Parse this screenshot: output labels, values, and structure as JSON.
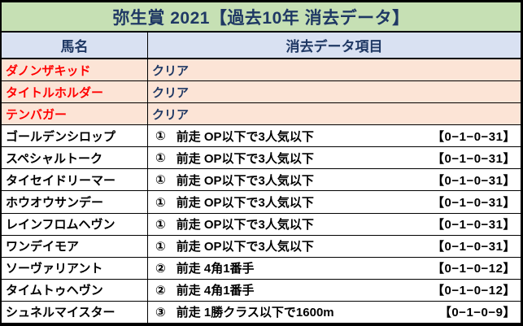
{
  "title": "弥生賞 2021【過去10年 消去データ】",
  "header": {
    "horse_col": "馬名",
    "data_col": "消去データ項目"
  },
  "rows": [
    {
      "name": "ダノンザキッド",
      "mark": "",
      "text": "クリア",
      "record": "",
      "cleared": true
    },
    {
      "name": "タイトルホルダー",
      "mark": "",
      "text": "クリア",
      "record": "",
      "cleared": true
    },
    {
      "name": "テンバガー",
      "mark": "",
      "text": "クリア",
      "record": "",
      "cleared": true
    },
    {
      "name": "ゴールデンシロップ",
      "mark": "①",
      "text": "前走 OP以下で3人気以下",
      "record": "【0−1−0−31】",
      "cleared": false
    },
    {
      "name": "スペシャルトーク",
      "mark": "①",
      "text": "前走 OP以下で3人気以下",
      "record": "【0−1−0−31】",
      "cleared": false
    },
    {
      "name": "タイセイドリーマー",
      "mark": "①",
      "text": "前走 OP以下で3人気以下",
      "record": "【0−1−0−31】",
      "cleared": false
    },
    {
      "name": "ホウオウサンデー",
      "mark": "①",
      "text": "前走 OP以下で3人気以下",
      "record": "【0−1−0−31】",
      "cleared": false
    },
    {
      "name": "レインフロムヘヴン",
      "mark": "①",
      "text": "前走 OP以下で3人気以下",
      "record": "【0−1−0−31】",
      "cleared": false
    },
    {
      "name": "ワンデイモア",
      "mark": "①",
      "text": "前走 OP以下で3人気以下",
      "record": "【0−1−0−31】",
      "cleared": false
    },
    {
      "name": "ソーヴァリアント",
      "mark": "②",
      "text": "前走 4角1番手",
      "record": "【0−1−0−12】",
      "cleared": false
    },
    {
      "name": "タイムトゥヘヴン",
      "mark": "②",
      "text": "前走 4角1番手",
      "record": "【0−1−0−12】",
      "cleared": false
    },
    {
      "name": "シュネルマイスター",
      "mark": "③",
      "text": "前走 1勝クラス以下で1600m",
      "record": "【0−1−0−9】",
      "cleared": false
    }
  ],
  "colors": {
    "title_bg": "#c6e0b4",
    "header_bg": "#d9e1f2",
    "cleared_row_bg": "#fce4d6",
    "row_bg": "#ffffff",
    "navy_text": "#1f3864",
    "cleared_name_text": "#ff0000",
    "body_text": "#000000",
    "border": "#000000"
  }
}
